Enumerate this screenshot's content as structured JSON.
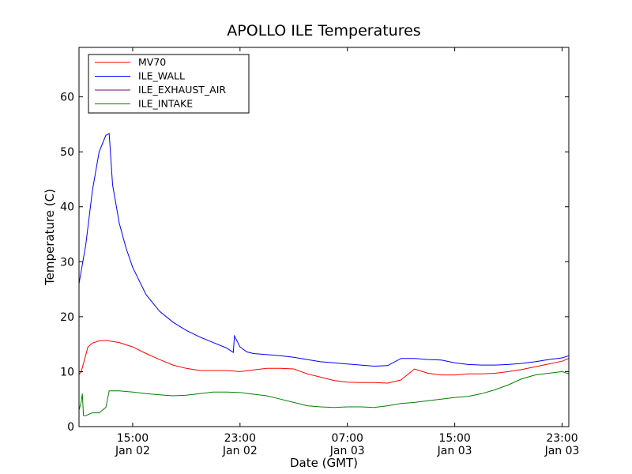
{
  "chart_data": {
    "type": "line",
    "title": "APOLLO ILE Temperatures",
    "xlabel": "Date (GMT)",
    "ylabel": "Temperature (C)",
    "xlim": [
      "2014-01-02T11:00",
      "2014-01-03T23:30"
    ],
    "ylim": [
      0,
      69
    ],
    "grid": false,
    "legend_position": "top-left",
    "x_ticks": [
      {
        "time": "2014-01-02T15:00",
        "label_time": "15:00",
        "label_date": "Jan 02"
      },
      {
        "time": "2014-01-02T23:00",
        "label_time": "23:00",
        "label_date": "Jan 02"
      },
      {
        "time": "2014-01-03T07:00",
        "label_time": "07:00",
        "label_date": "Jan 03"
      },
      {
        "time": "2014-01-03T15:00",
        "label_time": "15:00",
        "label_date": "Jan 03"
      },
      {
        "time": "2014-01-03T23:00",
        "label_time": "23:00",
        "label_date": "Jan 03"
      }
    ],
    "y_ticks": [
      0,
      10,
      20,
      30,
      40,
      50,
      60
    ],
    "series": [
      {
        "name": "MV70",
        "color": "#ff0000",
        "x": [
          "2014-01-02T11:00",
          "2014-01-02T11:10",
          "2014-01-02T11:20",
          "2014-01-02T11:40",
          "2014-01-02T12:00",
          "2014-01-02T12:30",
          "2014-01-02T13:00",
          "2014-01-02T13:30",
          "2014-01-02T14:00",
          "2014-01-02T15:00",
          "2014-01-02T16:00",
          "2014-01-02T17:00",
          "2014-01-02T18:00",
          "2014-01-02T19:00",
          "2014-01-02T20:00",
          "2014-01-02T21:00",
          "2014-01-02T22:00",
          "2014-01-02T23:00",
          "2014-01-03T00:00",
          "2014-01-03T01:00",
          "2014-01-03T02:00",
          "2014-01-03T03:00",
          "2014-01-03T04:00",
          "2014-01-03T05:00",
          "2014-01-03T06:00",
          "2014-01-03T07:00",
          "2014-01-03T08:00",
          "2014-01-03T09:00",
          "2014-01-03T10:00",
          "2014-01-03T11:00",
          "2014-01-03T12:00",
          "2014-01-03T13:00",
          "2014-01-03T14:00",
          "2014-01-03T15:00",
          "2014-01-03T16:00",
          "2014-01-03T17:00",
          "2014-01-03T18:00",
          "2014-01-03T19:00",
          "2014-01-03T20:00",
          "2014-01-03T21:00",
          "2014-01-03T22:00",
          "2014-01-03T23:00",
          "2014-01-03T23:30"
        ],
        "y": [
          9.5,
          10.0,
          11.5,
          14.5,
          15.2,
          15.6,
          15.7,
          15.5,
          15.3,
          14.5,
          13.3,
          12.2,
          11.2,
          10.6,
          10.2,
          10.2,
          10.2,
          10.0,
          10.3,
          10.6,
          10.6,
          10.5,
          9.6,
          9.0,
          8.4,
          8.1,
          8.0,
          8.0,
          7.9,
          8.5,
          10.5,
          9.7,
          9.4,
          9.4,
          9.6,
          9.6,
          9.7,
          10.0,
          10.4,
          10.9,
          11.4,
          11.9,
          12.4
        ]
      },
      {
        "name": "ILE_WALL",
        "color": "#0000ff",
        "x": [
          "2014-01-02T11:00",
          "2014-01-02T11:30",
          "2014-01-02T12:00",
          "2014-01-02T12:30",
          "2014-01-02T13:00",
          "2014-01-02T13:15",
          "2014-01-02T13:30",
          "2014-01-02T14:00",
          "2014-01-02T14:30",
          "2014-01-02T15:00",
          "2014-01-02T15:30",
          "2014-01-02T16:00",
          "2014-01-02T17:00",
          "2014-01-02T18:00",
          "2014-01-02T19:00",
          "2014-01-02T20:00",
          "2014-01-02T21:00",
          "2014-01-02T22:00",
          "2014-01-02T22:30",
          "2014-01-02T22:35",
          "2014-01-02T23:00",
          "2014-01-02T23:30",
          "2014-01-03T00:00",
          "2014-01-03T01:00",
          "2014-01-03T02:00",
          "2014-01-03T03:00",
          "2014-01-03T04:00",
          "2014-01-03T05:00",
          "2014-01-03T06:00",
          "2014-01-03T07:00",
          "2014-01-03T08:00",
          "2014-01-03T09:00",
          "2014-01-03T10:00",
          "2014-01-03T11:00",
          "2014-01-03T12:00",
          "2014-01-03T13:00",
          "2014-01-03T14:00",
          "2014-01-03T15:00",
          "2014-01-03T16:00",
          "2014-01-03T17:00",
          "2014-01-03T18:00",
          "2014-01-03T19:00",
          "2014-01-03T20:00",
          "2014-01-03T21:00",
          "2014-01-03T22:00",
          "2014-01-03T23:00",
          "2014-01-03T23:30"
        ],
        "y": [
          26.0,
          33.0,
          43.0,
          50.0,
          53.0,
          53.3,
          44.0,
          37.0,
          32.5,
          29.0,
          26.5,
          24.0,
          21.0,
          19.0,
          17.5,
          16.3,
          15.3,
          14.3,
          13.5,
          16.5,
          14.5,
          13.6,
          13.3,
          13.1,
          12.9,
          12.6,
          12.2,
          11.8,
          11.6,
          11.4,
          11.2,
          11.0,
          11.1,
          12.4,
          12.4,
          12.2,
          12.1,
          11.6,
          11.3,
          11.2,
          11.2,
          11.3,
          11.5,
          11.8,
          12.2,
          12.5,
          12.9
        ]
      },
      {
        "name": "ILE_EXHAUST_AIR",
        "color": "#800080",
        "x": [],
        "y": []
      },
      {
        "name": "ILE_INTAKE",
        "color": "#008000",
        "x": [
          "2014-01-02T11:00",
          "2014-01-02T11:10",
          "2014-01-02T11:15",
          "2014-01-02T11:20",
          "2014-01-02T11:30",
          "2014-01-02T12:00",
          "2014-01-02T12:30",
          "2014-01-02T13:00",
          "2014-01-02T13:15",
          "2014-01-02T14:00",
          "2014-01-02T15:00",
          "2014-01-02T16:00",
          "2014-01-02T17:00",
          "2014-01-02T18:00",
          "2014-01-02T19:00",
          "2014-01-02T20:00",
          "2014-01-02T21:00",
          "2014-01-02T22:00",
          "2014-01-02T23:00",
          "2014-01-03T00:00",
          "2014-01-03T01:00",
          "2014-01-03T02:00",
          "2014-01-03T03:00",
          "2014-01-03T04:00",
          "2014-01-03T05:00",
          "2014-01-03T06:00",
          "2014-01-03T07:00",
          "2014-01-03T08:00",
          "2014-01-03T09:00",
          "2014-01-03T10:00",
          "2014-01-03T11:00",
          "2014-01-03T12:00",
          "2014-01-03T13:00",
          "2014-01-03T14:00",
          "2014-01-03T15:00",
          "2014-01-03T16:00",
          "2014-01-03T17:00",
          "2014-01-03T18:00",
          "2014-01-03T19:00",
          "2014-01-03T20:00",
          "2014-01-03T21:00",
          "2014-01-03T22:00",
          "2014-01-03T23:00",
          "2014-01-03T23:30"
        ],
        "y": [
          3.0,
          4.5,
          6.0,
          2.0,
          2.0,
          2.5,
          2.5,
          3.5,
          6.5,
          6.5,
          6.3,
          6.0,
          5.8,
          5.6,
          5.7,
          6.0,
          6.3,
          6.3,
          6.2,
          5.9,
          5.6,
          5.0,
          4.4,
          3.8,
          3.6,
          3.5,
          3.6,
          3.6,
          3.5,
          3.8,
          4.2,
          4.4,
          4.7,
          5.0,
          5.3,
          5.5,
          6.0,
          6.7,
          7.6,
          8.7,
          9.4,
          9.7,
          10.0,
          9.6
        ]
      }
    ]
  }
}
